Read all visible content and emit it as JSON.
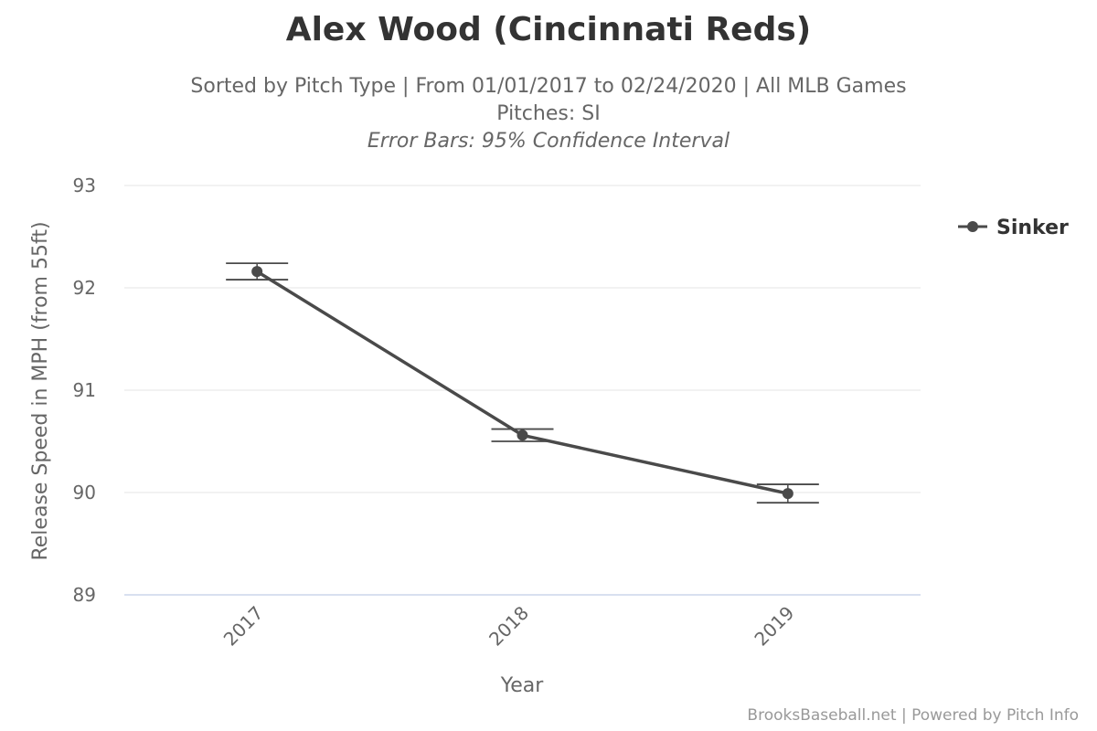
{
  "chart_data": {
    "type": "line",
    "title": "Alex Wood (Cincinnati Reds)",
    "subtitle": "Sorted by Pitch Type | From 01/01/2017 to 02/24/2020 | All MLB Games",
    "subtitle2": "Pitches: SI",
    "subtitle3": "Error Bars: 95% Confidence Interval",
    "xlabel": "Year",
    "ylabel": "Release Speed in MPH (from 55ft)",
    "categories": [
      "2017",
      "2018",
      "2019"
    ],
    "ylim": [
      89,
      93
    ],
    "yticks": [
      "89",
      "90",
      "91",
      "92",
      "93"
    ],
    "grid": true,
    "legend_position": "right",
    "series": [
      {
        "name": "Sinker",
        "color": "#4a4a4a",
        "values": [
          92.16,
          90.56,
          89.99
        ],
        "error_low": [
          92.08,
          90.5,
          89.9
        ],
        "error_high": [
          92.24,
          90.62,
          90.08
        ]
      }
    ]
  },
  "credits": "BrooksBaseball.net | Powered by Pitch Info"
}
